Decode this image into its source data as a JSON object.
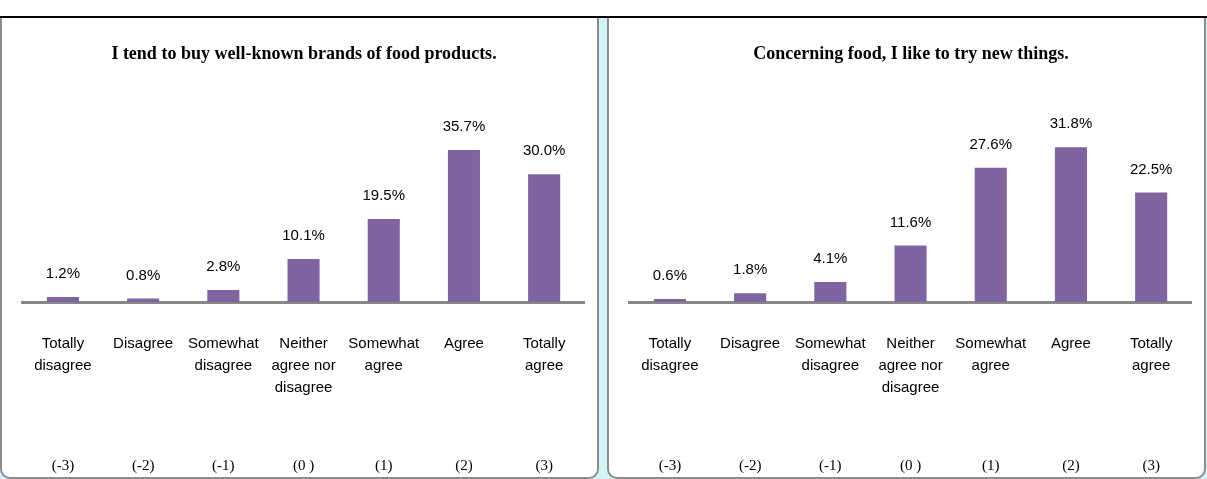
{
  "chart_data": [
    {
      "type": "bar",
      "title": "I tend to buy well-known brands of food products.",
      "categories": [
        "Totally disagree\n(-3)",
        "Disagree\n(-2)",
        "Somewhat disagree\n(-1)",
        "Neither agree nor disagree\n(0 )",
        "Somewhat agree\n(1)",
        "Agree\n(2)",
        "Totally agree\n(3)"
      ],
      "values": [
        1.2,
        0.8,
        2.8,
        10.1,
        19.5,
        35.7,
        30.0
      ],
      "value_labels": [
        "1.2%",
        "0.8%",
        "2.8%",
        "10.1%",
        "19.5%",
        "35.7%",
        "30.0%"
      ],
      "color": "#8064a2",
      "tick_labels": "x"
    },
    {
      "type": "bar",
      "title": "Concerning food, I like to try new things.",
      "categories": [
        "Totally disagree\n(-3)",
        "Disagree\n(-2)",
        "Somewhat disagree\n(-1)",
        "Neither agree nor disagree\n(0 )",
        "Somewhat agree\n(1)",
        "Agree\n(2)",
        "Totally agree\n(3)"
      ],
      "values": [
        0.6,
        1.8,
        4.1,
        11.6,
        27.6,
        31.8,
        22.5
      ],
      "value_labels": [
        "0.6%",
        "1.8%",
        "4.1%",
        "11.6%",
        "27.6%",
        "31.8%",
        "22.5%"
      ],
      "color": "#8064a2",
      "tick_labels": "x"
    }
  ]
}
